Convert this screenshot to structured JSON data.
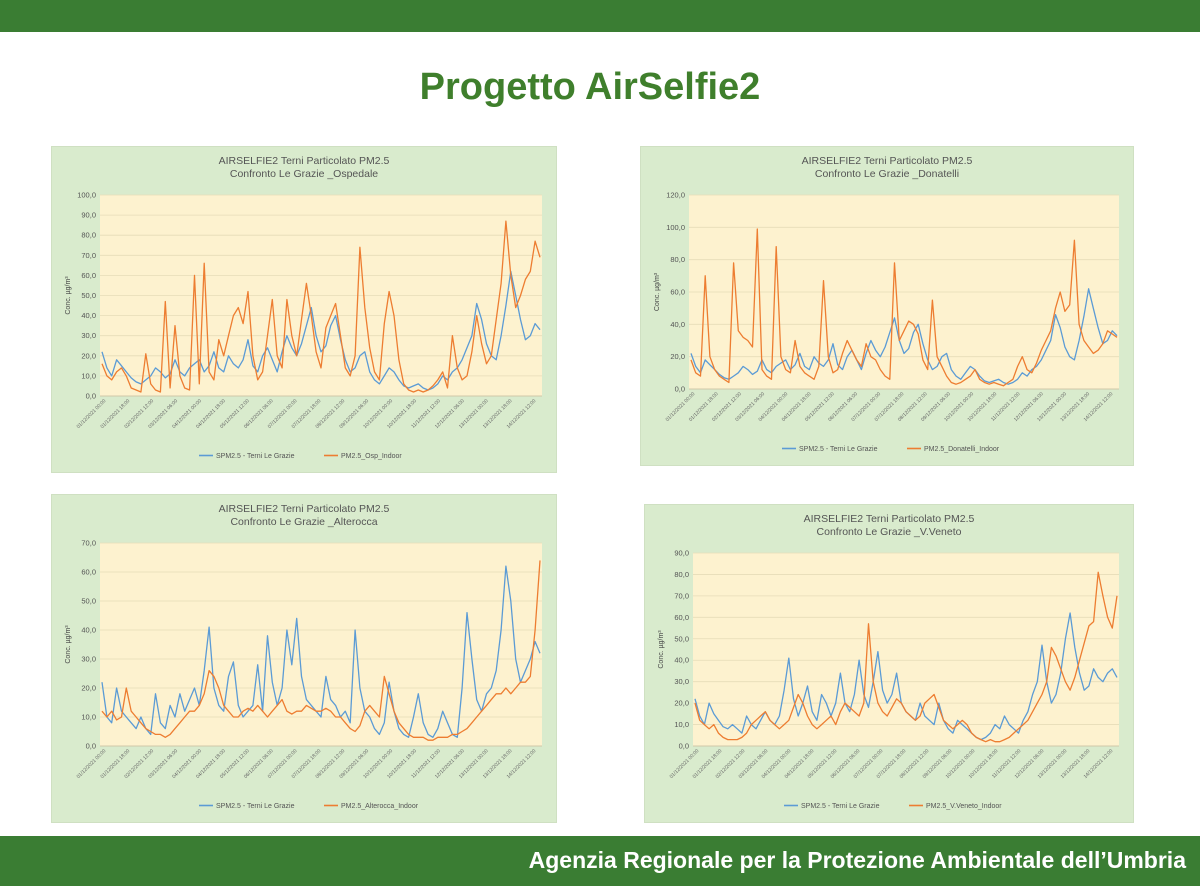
{
  "slide_title": "Progetto AirSelfie2",
  "footer_text": "Agenzia Regionale per la Protezione Ambientale dell’Umbria",
  "colors": {
    "brand_green": "#3a7d33",
    "title_green": "#3f7f2c",
    "panel_bg": "#d9ebcd",
    "plot_bg": "#fdf2cf",
    "series_outdoor": "#5b9bd5",
    "series_indoor": "#ed7d31"
  },
  "chart_data": [
    {
      "type": "line",
      "title": [
        "AIRSELFIE2 Terni  Particolato PM2.5",
        "Confronto Le Grazie _Ospedale"
      ],
      "ylabel": "Conc.  µg/m³",
      "ylim": [
        0,
        100
      ],
      "yticks": [
        0,
        10,
        20,
        30,
        40,
        50,
        60,
        70,
        80,
        90,
        100
      ],
      "ytick_labels": [
        "0,0",
        "10,0",
        "20,0",
        "30,0",
        "40,0",
        "50,0",
        "60,0",
        "70,0",
        "80,0",
        "90,0",
        "100,0"
      ],
      "x_labels": [
        "01/12/2021 00:00",
        "01/12/2021 18:00",
        "02/12/2021 12:00",
        "03/12/2021 06:00",
        "04/12/2021 00:00",
        "04/12/2021 18:00",
        "05/12/2021 12:00",
        "06/12/2021 06:00",
        "07/12/2021 00:00",
        "07/12/2021 18:00",
        "08/12/2021 12:00",
        "09/12/2021 06:00",
        "10/12/2021 00:00",
        "10/12/2021 18:00",
        "11/12/2021 12:00",
        "12/12/2021 06:00",
        "13/12/2021 00:00",
        "13/12/2021 18:00",
        "14/12/2021 12:00"
      ],
      "series": [
        {
          "name": "SPM2.5 - Terni Le Grazie",
          "color": "#5b9bd5",
          "values": [
            22,
            14,
            10,
            18,
            15,
            12,
            9,
            7,
            6,
            8,
            10,
            14,
            12,
            9,
            11,
            18,
            12,
            10,
            14,
            16,
            18,
            12,
            15,
            22,
            14,
            12,
            20,
            16,
            14,
            18,
            28,
            15,
            12,
            20,
            24,
            18,
            12,
            22,
            30,
            24,
            20,
            26,
            35,
            44,
            30,
            22,
            25,
            35,
            40,
            28,
            18,
            12,
            14,
            20,
            22,
            12,
            8,
            6,
            10,
            14,
            12,
            8,
            5,
            4,
            5,
            6,
            4,
            3,
            4,
            6,
            10,
            8,
            12,
            14,
            18,
            24,
            30,
            46,
            38,
            26,
            20,
            18,
            30,
            45,
            62,
            50,
            38,
            28,
            30,
            36,
            33
          ]
        },
        {
          "name": "PM2.5_Osp_Indoor",
          "color": "#ed7d31",
          "values": [
            16,
            10,
            8,
            12,
            14,
            10,
            4,
            3,
            2,
            21,
            6,
            3,
            2,
            47,
            4,
            35,
            10,
            4,
            3,
            60,
            6,
            66,
            12,
            8,
            28,
            20,
            30,
            40,
            44,
            36,
            52,
            20,
            8,
            12,
            30,
            48,
            20,
            14,
            48,
            30,
            20,
            38,
            56,
            40,
            22,
            14,
            34,
            40,
            46,
            30,
            14,
            10,
            20,
            74,
            44,
            24,
            12,
            8,
            36,
            52,
            40,
            18,
            6,
            3,
            2,
            3,
            2,
            3,
            5,
            8,
            12,
            4,
            30,
            14,
            8,
            10,
            22,
            40,
            26,
            16,
            20,
            38,
            56,
            87,
            60,
            44,
            50,
            58,
            62,
            77,
            69
          ]
        }
      ],
      "legend_position": "bottom"
    },
    {
      "type": "line",
      "title": [
        "AIRSELFIE2 Terni  Particolato PM2.5",
        "Confronto Le Grazie _Donatelli"
      ],
      "ylabel": "Conc.  µg/m³",
      "ylim": [
        0,
        120
      ],
      "yticks": [
        0,
        20,
        40,
        60,
        80,
        100,
        120
      ],
      "ytick_labels": [
        "0,0",
        "20,0",
        "40,0",
        "60,0",
        "80,0",
        "100,0",
        "120,0"
      ],
      "x_labels": [
        "01/12/2021 00:00",
        "01/12/2021 18:00",
        "02/12/2021 12:00",
        "03/12/2021 06:00",
        "04/12/2021 00:00",
        "04/12/2021 18:00",
        "05/12/2021 12:00",
        "06/12/2021 06:00",
        "07/12/2021 00:00",
        "07/12/2021 18:00",
        "08/12/2021 12:00",
        "09/12/2021 06:00",
        "10/12/2021 00:00",
        "10/12/2021 18:00",
        "11/12/2021 12:00",
        "12/12/2021 06:00",
        "13/12/2021 00:00",
        "13/12/2021 18:00",
        "14/12/2021 12:00"
      ],
      "series": [
        {
          "name": "SPM2.5 - Terni Le Grazie",
          "color": "#5b9bd5",
          "values": [
            22,
            14,
            10,
            18,
            15,
            12,
            9,
            7,
            6,
            8,
            10,
            14,
            12,
            9,
            11,
            18,
            12,
            10,
            14,
            16,
            18,
            12,
            15,
            22,
            14,
            12,
            20,
            16,
            14,
            18,
            28,
            15,
            12,
            20,
            24,
            18,
            12,
            22,
            30,
            24,
            20,
            26,
            35,
            44,
            30,
            22,
            25,
            35,
            40,
            28,
            18,
            12,
            14,
            20,
            22,
            12,
            8,
            6,
            10,
            14,
            12,
            8,
            5,
            4,
            5,
            6,
            4,
            3,
            4,
            6,
            10,
            8,
            12,
            14,
            18,
            24,
            30,
            46,
            38,
            26,
            20,
            18,
            30,
            45,
            62,
            50,
            38,
            28,
            30,
            36,
            33
          ]
        },
        {
          "name": "PM2.5_Donatelli_Indoor",
          "color": "#ed7d31",
          "values": [
            18,
            10,
            8,
            70,
            20,
            12,
            8,
            6,
            4,
            78,
            36,
            32,
            30,
            26,
            99,
            12,
            8,
            6,
            88,
            20,
            12,
            10,
            30,
            14,
            10,
            8,
            6,
            14,
            67,
            20,
            10,
            12,
            22,
            30,
            24,
            18,
            14,
            28,
            20,
            18,
            12,
            8,
            6,
            78,
            30,
            36,
            42,
            40,
            34,
            18,
            12,
            55,
            20,
            14,
            8,
            4,
            3,
            4,
            6,
            8,
            12,
            6,
            4,
            3,
            4,
            3,
            2,
            4,
            6,
            14,
            20,
            12,
            10,
            16,
            24,
            30,
            36,
            50,
            60,
            48,
            52,
            92,
            40,
            30,
            26,
            22,
            24,
            28,
            36,
            34,
            32
          ]
        }
      ],
      "legend_position": "bottom"
    },
    {
      "type": "line",
      "title": [
        "AIRSELFIE2 Terni  Particolato PM2.5",
        "Confronto Le Grazie _Alterocca"
      ],
      "ylabel": "Conc.  µg/m³",
      "ylim": [
        0,
        70
      ],
      "yticks": [
        0,
        10,
        20,
        30,
        40,
        50,
        60,
        70
      ],
      "ytick_labels": [
        "0,0",
        "10,0",
        "20,0",
        "30,0",
        "40,0",
        "50,0",
        "60,0",
        "70,0"
      ],
      "x_labels": [
        "01/12/2021 00:00",
        "01/12/2021 18:00",
        "02/12/2021 12:00",
        "03/12/2021 06:00",
        "04/12/2021 00:00",
        "04/12/2021 18:00",
        "05/12/2021 12:00",
        "06/12/2021 06:00",
        "07/12/2021 00:00",
        "07/12/2021 18:00",
        "08/12/2021 12:00",
        "09/12/2021 06:00",
        "10/12/2021 00:00",
        "10/12/2021 18:00",
        "11/12/2021 12:00",
        "12/12/2021 06:00",
        "13/12/2021 00:00",
        "13/12/2021 18:00",
        "14/12/2021 12:00"
      ],
      "series": [
        {
          "name": "SPM2.5 - Terni Le Grazie",
          "color": "#5b9bd5",
          "values": [
            22,
            10,
            8,
            20,
            12,
            10,
            8,
            6,
            10,
            6,
            4,
            18,
            8,
            6,
            14,
            10,
            18,
            12,
            16,
            20,
            14,
            26,
            41,
            20,
            14,
            12,
            24,
            29,
            14,
            10,
            12,
            14,
            28,
            12,
            38,
            22,
            14,
            20,
            40,
            28,
            44,
            24,
            16,
            14,
            12,
            10,
            24,
            16,
            14,
            10,
            12,
            8,
            40,
            20,
            12,
            10,
            6,
            4,
            8,
            22,
            12,
            6,
            4,
            3,
            10,
            18,
            8,
            4,
            3,
            6,
            12,
            8,
            4,
            3,
            20,
            46,
            30,
            16,
            12,
            18,
            20,
            26,
            40,
            62,
            50,
            30,
            22,
            26,
            30,
            36,
            32
          ]
        },
        {
          "name": "PM2.5_Alterocca_Indoor",
          "color": "#ed7d31",
          "values": [
            12,
            10,
            12,
            9,
            10,
            20,
            12,
            10,
            8,
            6,
            5,
            4,
            4,
            3,
            4,
            6,
            8,
            10,
            12,
            12,
            14,
            18,
            26,
            24,
            20,
            14,
            12,
            10,
            10,
            12,
            13,
            12,
            14,
            12,
            10,
            12,
            14,
            16,
            12,
            11,
            12,
            12,
            14,
            13,
            12,
            12,
            13,
            12,
            10,
            10,
            8,
            6,
            5,
            7,
            12,
            14,
            12,
            10,
            24,
            18,
            12,
            8,
            6,
            4,
            3,
            3,
            3,
            2,
            2,
            3,
            3,
            3,
            4,
            4,
            5,
            6,
            8,
            10,
            12,
            14,
            16,
            18,
            18,
            20,
            18,
            20,
            22,
            22,
            24,
            40,
            64
          ]
        }
      ],
      "legend_position": "bottom"
    },
    {
      "type": "line",
      "title": [
        "AIRSELFIE2 Terni  Particolato PM2.5",
        "Confronto Le Grazie _V.Veneto"
      ],
      "ylabel": "Conc.  µg/m³",
      "ylim": [
        0,
        90
      ],
      "yticks": [
        0,
        10,
        20,
        30,
        40,
        50,
        60,
        70,
        80,
        90
      ],
      "ytick_labels": [
        "0,0",
        "10,0",
        "20,0",
        "30,0",
        "40,0",
        "50,0",
        "60,0",
        "70,0",
        "80,0",
        "90,0"
      ],
      "x_labels": [
        "01/12/2021 00:00",
        "01/12/2021 18:00",
        "02/12/2021 12:00",
        "03/12/2021 06:00",
        "04/12/2021 00:00",
        "04/12/2021 18:00",
        "05/12/2021 12:00",
        "06/12/2021 06:00",
        "07/12/2021 00:00",
        "07/12/2021 18:00",
        "08/12/2021 12:00",
        "09/12/2021 06:00",
        "10/12/2021 00:00",
        "10/12/2021 18:00",
        "11/12/2021 12:00",
        "12/12/2021 06:00",
        "13/12/2021 00:00",
        "13/12/2021 18:00",
        "14/12/2021 12:00"
      ],
      "series": [
        {
          "name": "SPM2.5 - Terni Le Grazie",
          "color": "#5b9bd5",
          "values": [
            22,
            14,
            10,
            20,
            15,
            12,
            9,
            8,
            10,
            8,
            6,
            14,
            10,
            8,
            12,
            16,
            12,
            10,
            14,
            26,
            41,
            22,
            14,
            20,
            28,
            16,
            12,
            24,
            20,
            14,
            20,
            34,
            20,
            16,
            24,
            40,
            24,
            18,
            30,
            44,
            26,
            20,
            24,
            34,
            20,
            16,
            14,
            12,
            20,
            14,
            12,
            10,
            20,
            12,
            8,
            6,
            12,
            10,
            8,
            6,
            4,
            3,
            4,
            6,
            10,
            8,
            14,
            10,
            8,
            6,
            12,
            16,
            24,
            30,
            47,
            30,
            20,
            24,
            34,
            50,
            62,
            46,
            34,
            26,
            28,
            36,
            32,
            30,
            34,
            36,
            32
          ]
        },
        {
          "name": "PM2.5_V.Veneto_Indoor",
          "color": "#ed7d31",
          "values": [
            20,
            12,
            10,
            8,
            10,
            6,
            4,
            3,
            3,
            3,
            4,
            6,
            10,
            12,
            14,
            16,
            12,
            10,
            8,
            10,
            12,
            18,
            24,
            20,
            14,
            10,
            8,
            10,
            12,
            14,
            10,
            16,
            20,
            18,
            16,
            14,
            20,
            57,
            30,
            20,
            16,
            14,
            18,
            22,
            20,
            16,
            14,
            12,
            14,
            20,
            22,
            24,
            18,
            12,
            10,
            8,
            10,
            12,
            10,
            6,
            4,
            3,
            2,
            3,
            2,
            2,
            3,
            4,
            6,
            8,
            10,
            12,
            16,
            20,
            24,
            30,
            46,
            42,
            36,
            30,
            26,
            32,
            40,
            48,
            56,
            58,
            81,
            70,
            60,
            55,
            70
          ]
        }
      ],
      "legend_position": "bottom"
    }
  ]
}
